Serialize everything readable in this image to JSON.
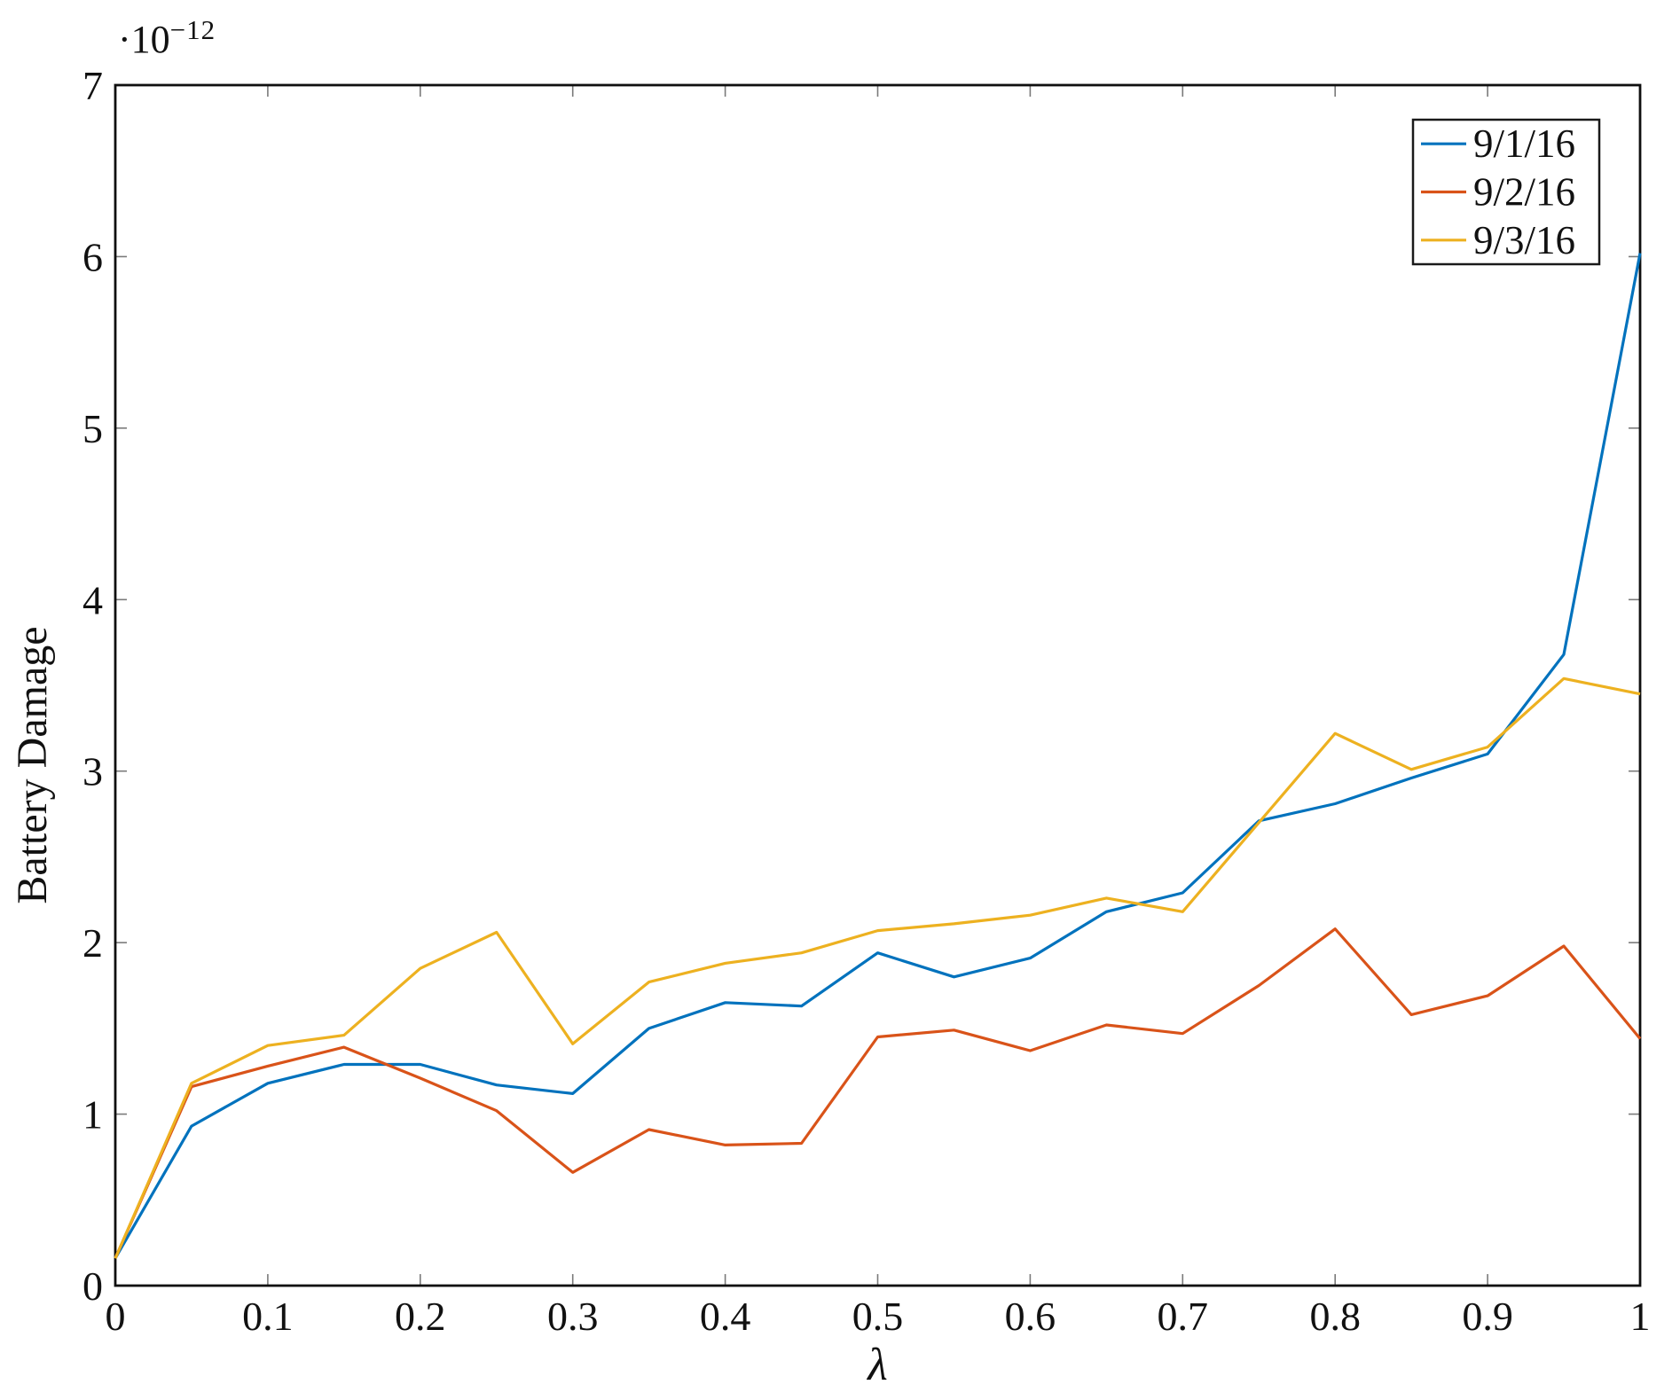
{
  "figure": {
    "background": "#ffffff",
    "y_axis_multiplier": {
      "base": "·10",
      "exponent": "−12"
    }
  },
  "chart_data": {
    "type": "line",
    "title": "",
    "xlabel": "λ",
    "ylabel": "Battery Damage",
    "y_scale_factor": "1e-12",
    "xlim": [
      0,
      1
    ],
    "ylim": [
      0,
      7
    ],
    "grid": false,
    "legend_position": "top-right",
    "xticks": {
      "values": [
        0,
        0.1,
        0.2,
        0.3,
        0.4,
        0.5,
        0.6,
        0.7,
        0.8,
        0.9,
        1
      ],
      "labels": [
        "0",
        "0.1",
        "0.2",
        "0.3",
        "0.4",
        "0.5",
        "0.6",
        "0.7",
        "0.8",
        "0.9",
        "1"
      ]
    },
    "yticks": {
      "values": [
        0,
        1,
        2,
        3,
        4,
        5,
        6,
        7
      ],
      "labels": [
        "0",
        "1",
        "2",
        "3",
        "4",
        "5",
        "6",
        "7"
      ]
    },
    "x": [
      0,
      0.05,
      0.1,
      0.15,
      0.2,
      0.25,
      0.3,
      0.35,
      0.4,
      0.45,
      0.5,
      0.55,
      0.6,
      0.65,
      0.7,
      0.75,
      0.8,
      0.85,
      0.9,
      0.95,
      1
    ],
    "series": [
      {
        "name": "9/1/16",
        "color": "#0072BD",
        "values": [
          0.16,
          0.93,
          1.18,
          1.29,
          1.29,
          1.17,
          1.12,
          1.5,
          1.65,
          1.63,
          1.94,
          1.8,
          1.91,
          2.18,
          2.29,
          2.71,
          2.81,
          2.96,
          3.1,
          3.68,
          6.02
        ]
      },
      {
        "name": "9/2/16",
        "color": "#D95319",
        "values": [
          0.16,
          1.16,
          1.28,
          1.39,
          1.21,
          1.02,
          0.66,
          0.91,
          0.82,
          0.83,
          1.45,
          1.49,
          1.37,
          1.52,
          1.47,
          1.75,
          2.08,
          1.58,
          1.69,
          1.98,
          1.44
        ]
      },
      {
        "name": "9/3/16",
        "color": "#EDB120",
        "values": [
          0.16,
          1.18,
          1.4,
          1.46,
          1.85,
          2.06,
          1.41,
          1.77,
          1.88,
          1.94,
          2.07,
          2.11,
          2.16,
          2.26,
          2.18,
          2.7,
          3.22,
          3.01,
          3.14,
          3.54,
          3.45
        ]
      }
    ]
  }
}
